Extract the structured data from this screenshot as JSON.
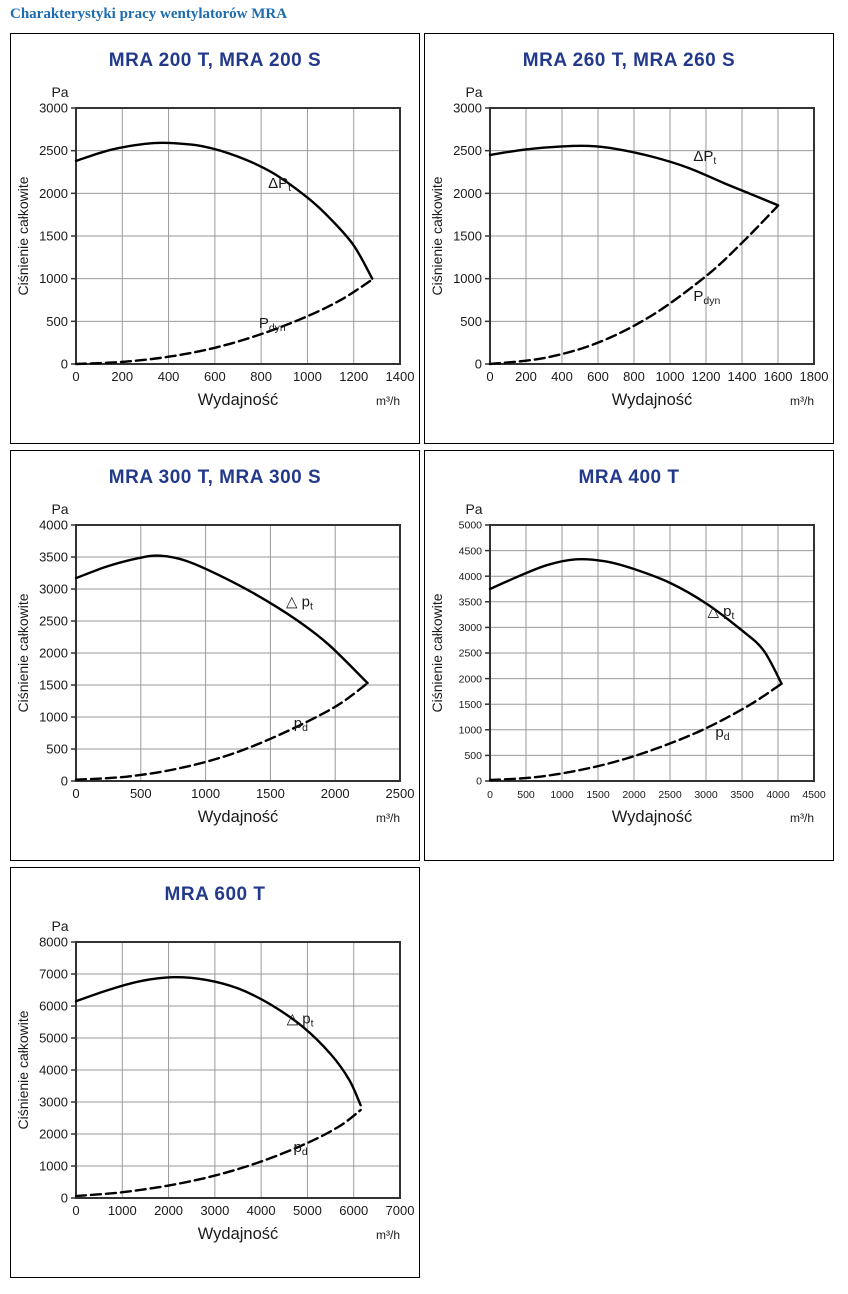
{
  "page": {
    "title": "Charakterystyki pracy wentylatorów MRA"
  },
  "colors": {
    "page_title": "#1b6cb0",
    "chart_title": "#233a8c",
    "grid": "#9a9a9a",
    "frame": "#333333",
    "curve": "#000000"
  },
  "chart_data": [
    {
      "type": "line",
      "title": "MRA 200 T, MRA 200 S",
      "xlabel": "Wydajność",
      "x_unit": "m³/h",
      "ylabel": "Ciśnienie całkowite",
      "y_unit": "Pa",
      "xlim": [
        0,
        1400
      ],
      "xstep": 200,
      "ylim": [
        0,
        3000
      ],
      "ystep": 500,
      "grid": true,
      "series": [
        {
          "name": "delta-p-total",
          "style": "solid",
          "label": {
            "text": "ΔP",
            "sub": "t",
            "x": 830,
            "y": 2060
          },
          "points": [
            [
              0,
              2380
            ],
            [
              150,
              2510
            ],
            [
              300,
              2580
            ],
            [
              400,
              2590
            ],
            [
              550,
              2550
            ],
            [
              700,
              2430
            ],
            [
              850,
              2240
            ],
            [
              1000,
              1950
            ],
            [
              1100,
              1700
            ],
            [
              1200,
              1390
            ],
            [
              1280,
              1000
            ]
          ]
        },
        {
          "name": "p-dynamic",
          "style": "dashed",
          "label": {
            "text": "P",
            "sub": "dyn",
            "x": 790,
            "y": 420
          },
          "points": [
            [
              0,
              0
            ],
            [
              200,
              25
            ],
            [
              400,
              85
            ],
            [
              600,
              190
            ],
            [
              800,
              350
            ],
            [
              1000,
              560
            ],
            [
              1150,
              760
            ],
            [
              1280,
              990
            ]
          ]
        }
      ]
    },
    {
      "type": "line",
      "title": "MRA 260 T, MRA 260 S",
      "xlabel": "Wydajność",
      "x_unit": "m³/h",
      "ylabel": "Ciśnienie całkowite",
      "y_unit": "Pa",
      "xlim": [
        0,
        1800
      ],
      "xstep": 200,
      "ylim": [
        0,
        3000
      ],
      "ystep": 500,
      "grid": true,
      "series": [
        {
          "name": "delta-p-total",
          "style": "solid",
          "label": {
            "text": "ΔP",
            "sub": "t",
            "x": 1130,
            "y": 2380
          },
          "points": [
            [
              0,
              2450
            ],
            [
              200,
              2515
            ],
            [
              400,
              2550
            ],
            [
              550,
              2555
            ],
            [
              700,
              2520
            ],
            [
              900,
              2430
            ],
            [
              1100,
              2300
            ],
            [
              1300,
              2120
            ],
            [
              1450,
              1990
            ],
            [
              1600,
              1860
            ]
          ]
        },
        {
          "name": "p-dynamic",
          "style": "dashed",
          "label": {
            "text": "P",
            "sub": "dyn",
            "x": 1130,
            "y": 740
          },
          "points": [
            [
              0,
              0
            ],
            [
              300,
              70
            ],
            [
              600,
              250
            ],
            [
              900,
              570
            ],
            [
              1200,
              1030
            ],
            [
              1400,
              1420
            ],
            [
              1600,
              1855
            ]
          ]
        }
      ]
    },
    {
      "type": "line",
      "title": "MRA 300 T, MRA 300 S",
      "xlabel": "Wydajność",
      "x_unit": "m³/h",
      "ylabel": "Ciśnienie całkowite",
      "y_unit": "Pa",
      "xlim": [
        0,
        2500
      ],
      "xstep": 500,
      "ylim": [
        0,
        4000
      ],
      "ystep": 500,
      "grid": true,
      "series": [
        {
          "name": "delta-p-total",
          "style": "solid",
          "label": {
            "text": "△ p",
            "sub": "t",
            "x": 1620,
            "y": 2730
          },
          "points": [
            [
              0,
              3170
            ],
            [
              250,
              3360
            ],
            [
              500,
              3490
            ],
            [
              650,
              3520
            ],
            [
              850,
              3440
            ],
            [
              1100,
              3220
            ],
            [
              1400,
              2900
            ],
            [
              1700,
              2520
            ],
            [
              1950,
              2130
            ],
            [
              2250,
              1530
            ]
          ]
        },
        {
          "name": "p-dynamic",
          "style": "dashed",
          "label": {
            "text": "p",
            "sub": "d",
            "x": 1680,
            "y": 830
          },
          "points": [
            [
              0,
              20
            ],
            [
              400,
              70
            ],
            [
              800,
              200
            ],
            [
              1200,
              420
            ],
            [
              1600,
              750
            ],
            [
              2000,
              1160
            ],
            [
              2250,
              1530
            ]
          ]
        }
      ]
    },
    {
      "type": "line",
      "title": "MRA 400 T",
      "xlabel": "Wydajność",
      "x_unit": "m³/h",
      "ylabel": "Ciśnienie całkowite",
      "y_unit": "Pa",
      "xlim": [
        0,
        4500
      ],
      "xstep": 500,
      "ylim": [
        0,
        5000
      ],
      "ystep": 500,
      "grid": true,
      "series": [
        {
          "name": "delta-p-total",
          "style": "solid",
          "label": {
            "text": "△ p",
            "sub": "t",
            "x": 3020,
            "y": 3220
          },
          "points": [
            [
              0,
              3750
            ],
            [
              400,
              4000
            ],
            [
              800,
              4220
            ],
            [
              1200,
              4330
            ],
            [
              1600,
              4290
            ],
            [
              2000,
              4140
            ],
            [
              2500,
              3870
            ],
            [
              3000,
              3470
            ],
            [
              3500,
              2940
            ],
            [
              3800,
              2550
            ],
            [
              4050,
              1900
            ]
          ]
        },
        {
          "name": "p-dynamic",
          "style": "dashed",
          "label": {
            "text": "p",
            "sub": "d",
            "x": 3130,
            "y": 860
          },
          "points": [
            [
              0,
              20
            ],
            [
              600,
              70
            ],
            [
              1200,
              200
            ],
            [
              1800,
              400
            ],
            [
              2400,
              680
            ],
            [
              3000,
              1030
            ],
            [
              3600,
              1480
            ],
            [
              4050,
              1900
            ]
          ]
        }
      ]
    },
    {
      "type": "line",
      "title": "MRA 600 T",
      "xlabel": "Wydajność",
      "x_unit": "m³/h",
      "ylabel": "Ciśnienie całkowite",
      "y_unit": "Pa",
      "xlim": [
        0,
        7000
      ],
      "xstep": 1000,
      "ylim": [
        0,
        8000
      ],
      "ystep": 1000,
      "grid": true,
      "series": [
        {
          "name": "delta-p-total",
          "style": "solid",
          "label": {
            "text": "△ p",
            "sub": "t",
            "x": 4550,
            "y": 5450
          },
          "points": [
            [
              0,
              6150
            ],
            [
              700,
              6500
            ],
            [
              1400,
              6780
            ],
            [
              2100,
              6900
            ],
            [
              2800,
              6820
            ],
            [
              3500,
              6550
            ],
            [
              4200,
              6050
            ],
            [
              4900,
              5350
            ],
            [
              5500,
              4500
            ],
            [
              5900,
              3700
            ],
            [
              6150,
              2900
            ]
          ]
        },
        {
          "name": "p-dynamic",
          "style": "dashed",
          "label": {
            "text": "p",
            "sub": "d",
            "x": 4700,
            "y": 1430
          },
          "points": [
            [
              0,
              60
            ],
            [
              1000,
              180
            ],
            [
              2000,
              390
            ],
            [
              3000,
              700
            ],
            [
              4000,
              1140
            ],
            [
              5000,
              1720
            ],
            [
              5700,
              2250
            ],
            [
              6150,
              2750
            ]
          ]
        }
      ]
    }
  ]
}
